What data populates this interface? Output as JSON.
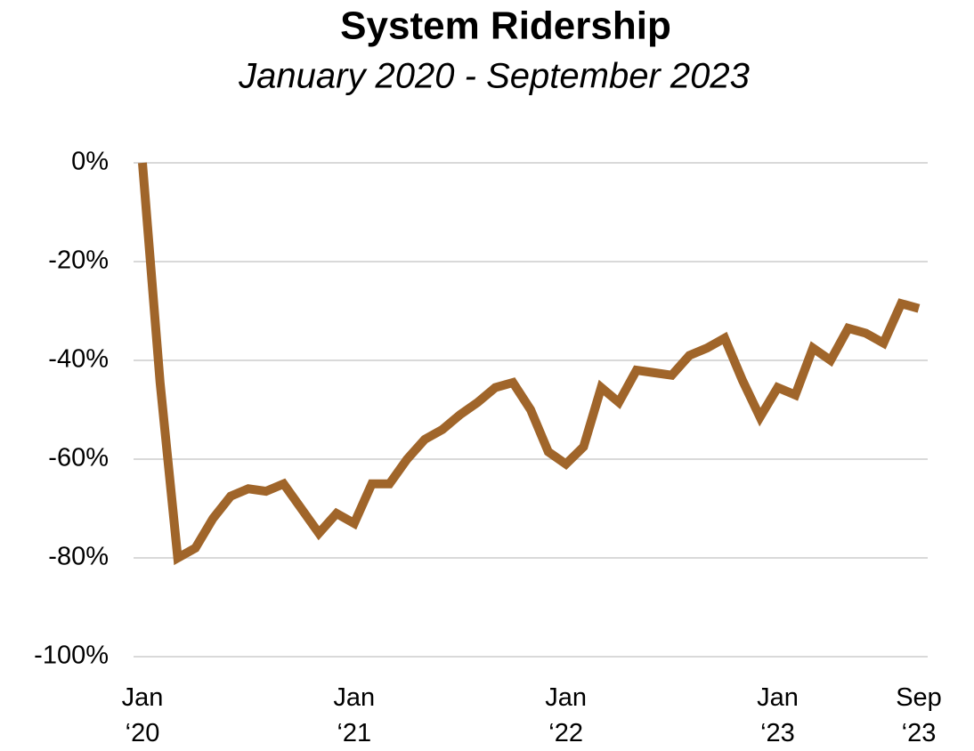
{
  "chart_data": {
    "type": "line",
    "title": "System Ridership",
    "subtitle": "January 2020 - September 2023",
    "categories": [
      "Jan ‘20",
      null,
      null,
      null,
      null,
      null,
      null,
      null,
      null,
      null,
      null,
      null,
      "Jan ‘21",
      null,
      null,
      null,
      null,
      null,
      null,
      null,
      null,
      null,
      null,
      null,
      "Jan ‘22",
      null,
      null,
      null,
      null,
      null,
      null,
      null,
      null,
      null,
      null,
      null,
      "Jan ‘23",
      null,
      null,
      null,
      null,
      null,
      null,
      null,
      "Sep ‘23"
    ],
    "series": [
      {
        "name": "System Ridership",
        "color": "#a0652a",
        "values": [
          0,
          -44.5,
          -80,
          -78,
          -72,
          -67.5,
          -66,
          -66.5,
          -65,
          -70,
          -75,
          -71,
          -73,
          -65,
          -65,
          -60,
          -56,
          -54,
          -51,
          -48.5,
          -45.5,
          -44.5,
          -50,
          -58.5,
          -61,
          -57.5,
          -45.5,
          -48.5,
          -42,
          -42.5,
          -43,
          -39,
          -37.5,
          -35.5,
          -44,
          -51.5,
          -45.5,
          -47,
          -37.5,
          -40,
          -33.5,
          -34.5,
          -36.5,
          -28.5,
          -29.5
        ]
      }
    ],
    "ylim": [
      -100,
      0
    ],
    "yticks": [
      {
        "value": 0,
        "label": "0%"
      },
      {
        "value": -20,
        "label": "-20%"
      },
      {
        "value": -40,
        "label": "-40%"
      },
      {
        "value": -60,
        "label": "-60%"
      },
      {
        "value": -80,
        "label": "-80%"
      },
      {
        "value": -100,
        "label": "-100%"
      }
    ],
    "grid": true
  }
}
